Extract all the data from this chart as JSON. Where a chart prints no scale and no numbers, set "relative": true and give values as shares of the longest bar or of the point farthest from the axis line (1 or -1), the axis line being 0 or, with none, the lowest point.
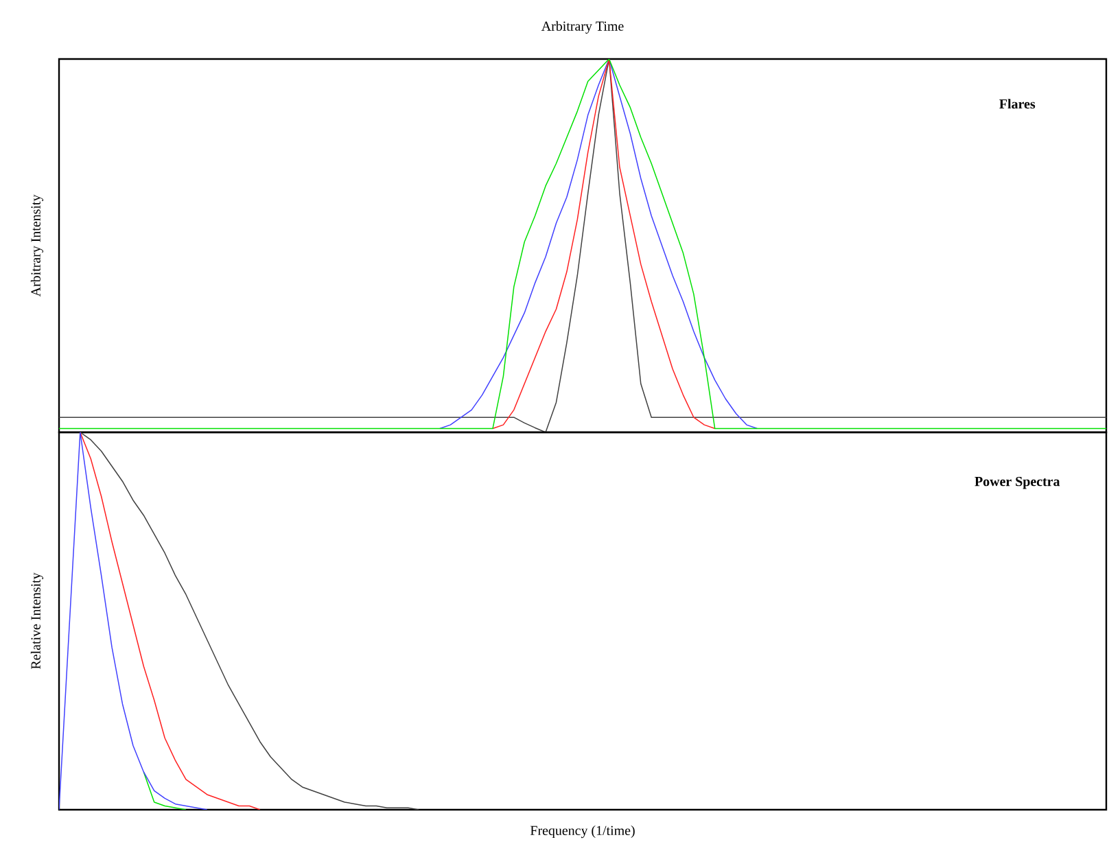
{
  "chart_data": [
    {
      "type": "line",
      "xlabel": "Arbitrary Time",
      "ylabel": "Arbitrary Intensity",
      "annotations": [
        "Flares"
      ],
      "relative": true,
      "categories": [
        null,
        null,
        null,
        null,
        null,
        null,
        null,
        null,
        null,
        null,
        null,
        null,
        null,
        null,
        null,
        null,
        null,
        null,
        null,
        null,
        null,
        null,
        null,
        null,
        null,
        null,
        null,
        null,
        null,
        null,
        null,
        null,
        null,
        null,
        null,
        null,
        null,
        null,
        null,
        null,
        null,
        null,
        null,
        null,
        null,
        null,
        null,
        null,
        null,
        null,
        null,
        null,
        null,
        null,
        null,
        null,
        null,
        null,
        null,
        null,
        null,
        null,
        null,
        null,
        null,
        null,
        null,
        null,
        null,
        null,
        null,
        null,
        null,
        null,
        null,
        null,
        null,
        null,
        null,
        null,
        null,
        null,
        null,
        null,
        null,
        null,
        null,
        null,
        null,
        null,
        null,
        null,
        null,
        null,
        null,
        null,
        null,
        null,
        null,
        null
      ],
      "series": [
        {
          "color": "#404040",
          "values": [
            0.04,
            0.04,
            0.04,
            0.04,
            0.04,
            0.04,
            0.04,
            0.04,
            0.04,
            0.04,
            0.04,
            0.04,
            0.04,
            0.04,
            0.04,
            0.04,
            0.04,
            0.04,
            0.04,
            0.04,
            0.04,
            0.04,
            0.04,
            0.04,
            0.04,
            0.04,
            0.04,
            0.04,
            0.04,
            0.04,
            0.04,
            0.04,
            0.04,
            0.04,
            0.04,
            0.04,
            0.04,
            0.04,
            0.04,
            0.04,
            0.04,
            0.04,
            0.04,
            0.04,
            0.025,
            0.012,
            0,
            0.08,
            0.24,
            0.42,
            0.64,
            0.85,
            1,
            0.64,
            0.4,
            0.13,
            0.04,
            0.04,
            0.04,
            0.04,
            0.04,
            0.04,
            0.04,
            0.04,
            0.04,
            0.04,
            0.04,
            0.04,
            0.04,
            0.04,
            0.04,
            0.04,
            0.04,
            0.04,
            0.04,
            0.04,
            0.04,
            0.04,
            0.04,
            0.04,
            0.04,
            0.04,
            0.04,
            0.04,
            0.04,
            0.04,
            0.04,
            0.04,
            0.04,
            0.04,
            0.04,
            0.04,
            0.04,
            0.04,
            0.04,
            0.04,
            0.04,
            0.04,
            0.04,
            0.04
          ]
        },
        {
          "color": "#4040ff",
          "values": [
            null,
            null,
            null,
            null,
            null,
            null,
            null,
            null,
            null,
            null,
            null,
            null,
            null,
            null,
            null,
            null,
            null,
            null,
            null,
            null,
            null,
            null,
            null,
            null,
            null,
            null,
            null,
            null,
            null,
            null,
            null,
            null,
            null,
            null,
            null,
            null,
            0.01,
            0.02,
            0.04,
            0.06,
            0.1,
            0.15,
            0.2,
            0.26,
            0.32,
            0.4,
            0.47,
            0.56,
            0.63,
            0.73,
            0.85,
            0.93,
            1,
            0.9,
            0.8,
            0.68,
            0.58,
            0.5,
            0.42,
            0.35,
            0.27,
            0.2,
            0.14,
            0.09,
            0.05,
            0.02,
            0.01,
            null,
            null,
            null,
            null,
            null,
            null,
            null,
            null,
            null,
            null,
            null,
            null,
            null,
            null,
            null,
            null,
            null,
            null,
            null,
            null,
            null,
            null,
            null,
            null,
            null,
            null,
            null,
            null,
            null,
            null,
            null,
            null,
            null
          ]
        },
        {
          "color": "#ff2020",
          "values": [
            null,
            null,
            null,
            null,
            null,
            null,
            null,
            null,
            null,
            null,
            null,
            null,
            null,
            null,
            null,
            null,
            null,
            null,
            null,
            null,
            null,
            null,
            null,
            null,
            null,
            null,
            null,
            null,
            null,
            null,
            null,
            null,
            null,
            null,
            null,
            null,
            null,
            null,
            null,
            null,
            null,
            0.01,
            0.02,
            0.06,
            0.13,
            0.2,
            0.27,
            0.33,
            0.43,
            0.57,
            0.75,
            0.9,
            1,
            0.71,
            0.58,
            0.45,
            0.35,
            0.26,
            0.17,
            0.1,
            0.04,
            0.02,
            0.01,
            null,
            null,
            null,
            null,
            null,
            null,
            null,
            null,
            null,
            null,
            null,
            null,
            null,
            null,
            null,
            null,
            null,
            null,
            null,
            null,
            null,
            null,
            null,
            null,
            null,
            null,
            null,
            null,
            null,
            null,
            null,
            null,
            null,
            null,
            null,
            null,
            null
          ]
        },
        {
          "color": "#00e000",
          "values": [
            0.01,
            0.01,
            0.01,
            0.01,
            0.01,
            0.01,
            0.01,
            0.01,
            0.01,
            0.01,
            0.01,
            0.01,
            0.01,
            0.01,
            0.01,
            0.01,
            0.01,
            0.01,
            0.01,
            0.01,
            0.01,
            0.01,
            0.01,
            0.01,
            0.01,
            0.01,
            0.01,
            0.01,
            0.01,
            0.01,
            0.01,
            0.01,
            0.01,
            0.01,
            0.01,
            0.01,
            0.01,
            0.01,
            0.01,
            0.01,
            0.01,
            0.01,
            0.15,
            0.39,
            0.51,
            0.58,
            0.66,
            0.72,
            0.79,
            0.86,
            0.94,
            0.97,
            1,
            0.93,
            0.87,
            0.79,
            0.72,
            0.64,
            0.56,
            0.48,
            0.37,
            0.2,
            0.01,
            0.01,
            0.01,
            0.01,
            0.01,
            0.01,
            0.01,
            0.01,
            0.01,
            0.01,
            0.01,
            0.01,
            0.01,
            0.01,
            0.01,
            0.01,
            0.01,
            0.01,
            0.01,
            0.01,
            0.01,
            0.01,
            0.01,
            0.01,
            0.01,
            0.01,
            0.01,
            0.01,
            0.01,
            0.01,
            0.01,
            0.01,
            0.01,
            0.01,
            0.01,
            0.01,
            0.01,
            0.01
          ]
        }
      ]
    },
    {
      "type": "line",
      "xlabel": "Frequency (1/time)",
      "ylabel": "Relative Intensity",
      "annotations": [
        "Power Spectra"
      ],
      "relative": true,
      "categories": [
        null,
        null,
        null,
        null,
        null,
        null,
        null,
        null,
        null,
        null,
        null,
        null,
        null,
        null,
        null,
        null,
        null,
        null,
        null,
        null,
        null,
        null,
        null,
        null,
        null,
        null,
        null,
        null,
        null,
        null,
        null,
        null,
        null,
        null,
        null,
        null,
        null,
        null,
        null,
        null,
        null,
        null,
        null,
        null,
        null,
        null,
        null,
        null,
        null,
        null,
        null,
        null,
        null,
        null,
        null,
        null,
        null,
        null,
        null,
        null,
        null,
        null,
        null,
        null,
        null,
        null,
        null,
        null,
        null,
        null,
        null,
        null,
        null,
        null,
        null,
        null,
        null,
        null,
        null,
        null,
        null,
        null,
        null,
        null,
        null,
        null,
        null,
        null,
        null,
        null,
        null,
        null,
        null,
        null,
        null,
        null,
        null,
        null,
        null,
        null
      ],
      "series": [
        {
          "color": "#404040",
          "values": [
            null,
            null,
            1,
            0.98,
            0.95,
            0.91,
            0.87,
            0.82,
            0.78,
            0.73,
            0.68,
            0.62,
            0.57,
            0.51,
            0.45,
            0.39,
            0.33,
            0.28,
            0.23,
            0.18,
            0.14,
            0.11,
            0.08,
            0.06,
            0.05,
            0.04,
            0.03,
            0.02,
            0.015,
            0.01,
            0.01,
            0.005,
            0.005,
            0.005,
            0,
            null,
            null,
            null,
            null,
            null,
            null,
            null,
            null,
            null,
            null,
            null,
            null,
            null,
            null,
            null,
            null,
            null,
            null,
            null,
            null,
            null,
            null,
            null,
            null,
            null,
            null,
            null,
            null,
            null,
            null,
            null,
            null,
            null,
            null,
            null,
            null,
            null,
            null,
            null,
            null,
            null,
            null,
            null,
            null,
            null,
            null,
            null,
            null,
            null,
            null,
            null,
            null,
            null,
            null,
            null,
            null,
            null,
            null,
            null,
            null,
            null,
            null,
            null,
            null,
            null
          ]
        },
        {
          "color": "#ff2020",
          "values": [
            null,
            null,
            1,
            0.93,
            0.83,
            0.71,
            0.6,
            0.49,
            0.38,
            0.29,
            0.19,
            0.13,
            0.08,
            0.06,
            0.04,
            0.03,
            0.02,
            0.01,
            0.01,
            0,
            null,
            null,
            null,
            null,
            null,
            null,
            null,
            null,
            null,
            null,
            null,
            null,
            null,
            null,
            null,
            null,
            null,
            null,
            null,
            null,
            null,
            null,
            null,
            null,
            null,
            null,
            null,
            null,
            null,
            null,
            null,
            null,
            null,
            null,
            null,
            null,
            null,
            null,
            null,
            null,
            null,
            null,
            null,
            null,
            null,
            null,
            null,
            null,
            null,
            null,
            null,
            null,
            null,
            null,
            null,
            null,
            null,
            null,
            null,
            null,
            null,
            null,
            null,
            null,
            null,
            null,
            null,
            null,
            null,
            null,
            null,
            null,
            null,
            null,
            null,
            null,
            null,
            null,
            null,
            null
          ]
        },
        {
          "color": "#00e000",
          "values": [
            null,
            null,
            null,
            null,
            null,
            null,
            null,
            null,
            0.1,
            0.02,
            0.01,
            0.005,
            0,
            null,
            null,
            null,
            null,
            null,
            null,
            null,
            null,
            null,
            null,
            null,
            null,
            null,
            null,
            null,
            null,
            null,
            null,
            null,
            null,
            null,
            null,
            null,
            null,
            null,
            null,
            null,
            null,
            null,
            null,
            null,
            null,
            null,
            null,
            null,
            null,
            null,
            null,
            null,
            null,
            null,
            null,
            null,
            null,
            null,
            null,
            null,
            null,
            null,
            null,
            null,
            null,
            null,
            null,
            null,
            null,
            null,
            null,
            null,
            null,
            null,
            null,
            null,
            null,
            null,
            null,
            null,
            null,
            null,
            null,
            null,
            null,
            null,
            null,
            null,
            null,
            null,
            null,
            null,
            null,
            null,
            null,
            null,
            null,
            null,
            null,
            null
          ]
        },
        {
          "color": "#4040ff",
          "values": [
            0,
            0.5,
            1,
            0.8,
            0.62,
            0.43,
            0.28,
            0.17,
            0.1,
            0.05,
            0.03,
            0.015,
            0.01,
            0.005,
            0,
            null,
            null,
            null,
            null,
            null,
            null,
            null,
            null,
            null,
            null,
            null,
            null,
            null,
            null,
            null,
            null,
            null,
            null,
            null,
            null,
            null,
            null,
            null,
            null,
            null,
            null,
            null,
            null,
            null,
            null,
            null,
            null,
            null,
            null,
            null,
            null,
            null,
            null,
            null,
            null,
            null,
            null,
            null,
            null,
            null,
            null,
            null,
            null,
            null,
            null,
            null,
            null,
            null,
            null,
            null,
            null,
            null,
            null,
            null,
            null,
            null,
            null,
            null,
            null,
            null,
            null,
            null,
            null,
            null,
            null,
            null,
            null,
            null,
            null,
            null,
            null,
            null,
            null,
            null,
            null,
            null,
            null,
            null,
            null,
            null
          ]
        }
      ]
    }
  ]
}
